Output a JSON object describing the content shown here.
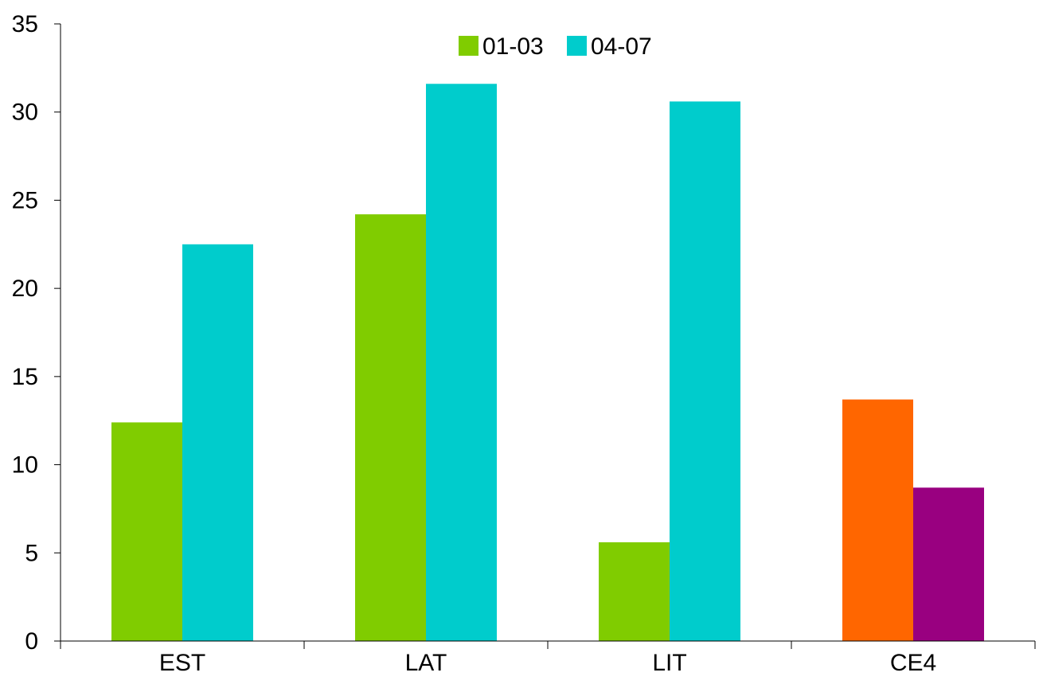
{
  "chart_data": {
    "type": "bar",
    "categories": [
      "EST",
      "LAT",
      "LIT",
      "CE4"
    ],
    "series": [
      {
        "name": "01-03",
        "color": "#80cc00",
        "values": [
          12.4,
          24.2,
          5.6,
          13.7
        ],
        "point_colors": [
          "#80cc00",
          "#80cc00",
          "#80cc00",
          "#ff6600"
        ]
      },
      {
        "name": "04-07",
        "color": "#00cccc",
        "values": [
          22.5,
          31.6,
          30.6,
          8.7
        ],
        "point_colors": [
          "#00cccc",
          "#00cccc",
          "#00cccc",
          "#990080"
        ]
      }
    ],
    "ylim": [
      0,
      35
    ],
    "yticks": [
      "0",
      "5",
      "10",
      "15",
      "20",
      "25",
      "30",
      "35"
    ],
    "grid": false,
    "legend": "top-center",
    "title": "",
    "xlabel": "",
    "ylabel": ""
  }
}
